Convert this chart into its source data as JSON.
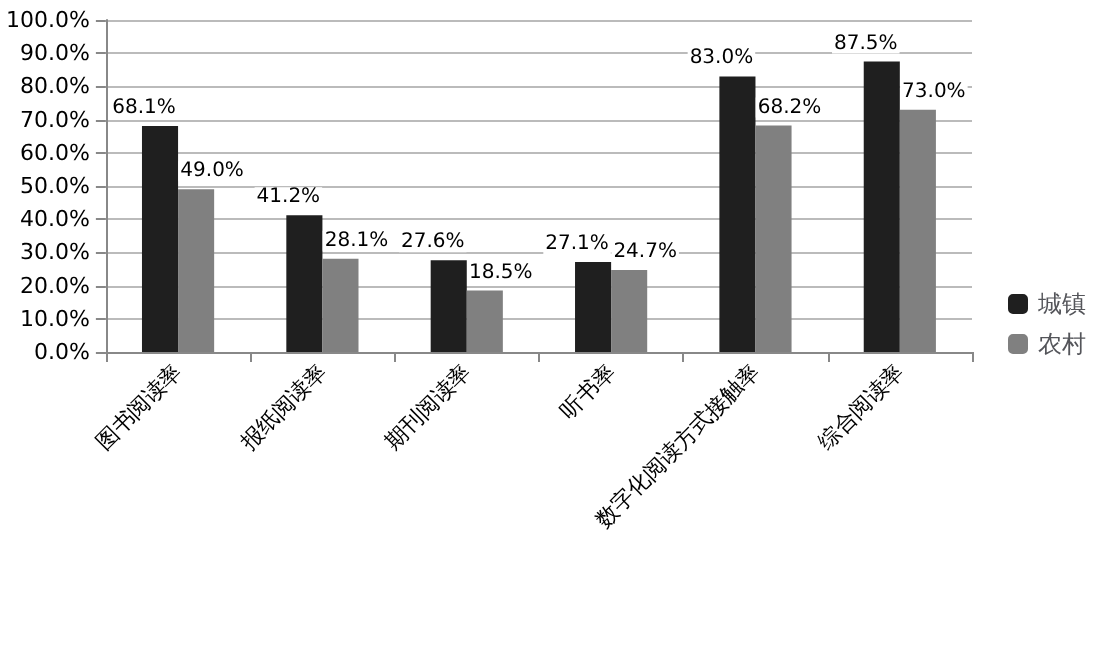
{
  "chart_data": {
    "type": "bar",
    "categories": [
      "图书阅读率",
      "报纸阅读率",
      "期刊阅读率",
      "听书率",
      "数字化阅读方式接触率",
      "综合阅读率"
    ],
    "series": [
      {
        "name": "城镇",
        "color": "#1f1f1f",
        "values": [
          68.1,
          41.2,
          27.6,
          27.1,
          83.0,
          87.5
        ],
        "value_labels": [
          "68.1%",
          "41.2%",
          "27.6%",
          "27.1%",
          "83.0%",
          "87.5%"
        ]
      },
      {
        "name": "农村",
        "color": "#808080",
        "values": [
          49.0,
          28.1,
          18.5,
          24.7,
          68.2,
          73.0
        ],
        "value_labels": [
          "49.0%",
          "28.1%",
          "18.5%",
          "24.7%",
          "68.2%",
          "73.0%"
        ]
      }
    ],
    "ylim": [
      0,
      100
    ],
    "yticks": [
      {
        "value": 0,
        "label": "0.0%"
      },
      {
        "value": 10,
        "label": "10.0%"
      },
      {
        "value": 20,
        "label": "20.0%"
      },
      {
        "value": 30,
        "label": "30.0%"
      },
      {
        "value": 40,
        "label": "40.0%"
      },
      {
        "value": 50,
        "label": "50.0%"
      },
      {
        "value": 60,
        "label": "60.0%"
      },
      {
        "value": 70,
        "label": "70.0%"
      },
      {
        "value": 80,
        "label": "80.0%"
      },
      {
        "value": 90,
        "label": "90.0%"
      },
      {
        "value": 100,
        "label": "100.0%"
      }
    ],
    "grid": "y",
    "legend": "right"
  }
}
